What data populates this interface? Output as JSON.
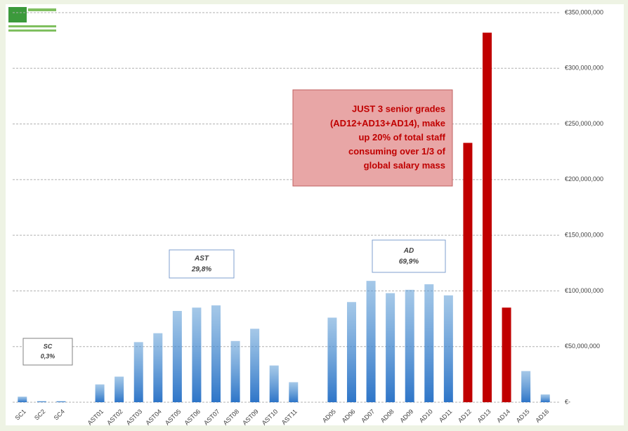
{
  "chart_data": {
    "type": "bar",
    "categories": [
      "SC1",
      "SC2",
      "SC4",
      null,
      "AST01",
      "AST02",
      "AST03",
      "AST04",
      "AST05",
      "AST06",
      "AST07",
      "AST08",
      "AST09",
      "AST10",
      "AST11",
      null,
      "AD05",
      "AD06",
      "AD07",
      "AD08",
      "AD09",
      "AD10",
      "AD11",
      "AD12",
      "AD13",
      "AD14",
      "AD15",
      "AD16"
    ],
    "values": [
      5000000,
      1000000,
      1000000,
      null,
      16000000,
      23000000,
      54000000,
      62000000,
      82000000,
      85000000,
      87000000,
      55000000,
      66000000,
      33000000,
      18000000,
      null,
      76000000,
      90000000,
      109000000,
      98000000,
      101000000,
      106000000,
      96000000,
      233000000,
      332000000,
      85000000,
      28000000,
      7000000
    ],
    "colors": [
      "#5b9bd5",
      "#5b9bd5",
      "#5b9bd5",
      null,
      "#5b9bd5",
      "#5b9bd5",
      "#5b9bd5",
      "#5b9bd5",
      "#5b9bd5",
      "#5b9bd5",
      "#5b9bd5",
      "#5b9bd5",
      "#5b9bd5",
      "#5b9bd5",
      "#5b9bd5",
      null,
      "#5b9bd5",
      "#5b9bd5",
      "#5b9bd5",
      "#5b9bd5",
      "#5b9bd5",
      "#5b9bd5",
      "#5b9bd5",
      "#c00000",
      "#c00000",
      "#c00000",
      "#5b9bd5",
      "#5b9bd5"
    ],
    "ylim": [
      0,
      350000000
    ],
    "yticks": [
      {
        "value": 0,
        "label": "€-"
      },
      {
        "value": 50000000,
        "label": "€50,000,000"
      },
      {
        "value": 100000000,
        "label": "€100,000,000"
      },
      {
        "value": 150000000,
        "label": "€150,000,000"
      },
      {
        "value": 200000000,
        "label": "€200,000,000"
      },
      {
        "value": 250000000,
        "label": "€250,000,000"
      },
      {
        "value": 300000000,
        "label": "€300,000,000"
      },
      {
        "value": 350000000,
        "label": "€350,000,000"
      }
    ],
    "grid": true,
    "annotations": [
      {
        "lines": [
          "SC",
          "0,3%"
        ]
      },
      {
        "lines": [
          "AST",
          "29,8%"
        ]
      },
      {
        "lines": [
          "AD",
          "69,9%"
        ]
      },
      {
        "lines": [
          "JUST 3 senior grades",
          "(AD12+AD13+AD14), make",
          "up 20% of total staff",
          "consuming over 1/3 of",
          "global salary mass"
        ]
      }
    ]
  }
}
